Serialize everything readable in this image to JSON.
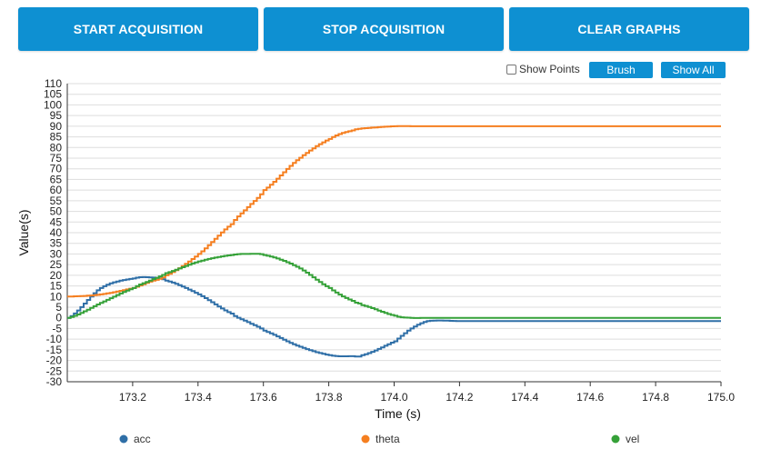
{
  "toolbar": {
    "start_label": "START ACQUISITION",
    "stop_label": "STOP ACQUISITION",
    "clear_label": "CLEAR GRAPHS"
  },
  "controls": {
    "show_points_label": "Show Points",
    "show_points_checked": false,
    "brush_label": "Brush",
    "show_all_label": "Show All"
  },
  "colors": {
    "button": "#0e90d2",
    "acc": "#2f6fa7",
    "theta": "#f57f20",
    "vel": "#35a138",
    "grid": "#dddddd"
  },
  "chart_data": {
    "type": "line",
    "xlabel": "Time (s)",
    "ylabel": "Value(s)",
    "xlim": [
      173.0,
      175.0
    ],
    "ylim": [
      -30,
      110
    ],
    "x_ticks": [
      "173.2",
      "173.4",
      "173.6",
      "173.8",
      "174.0",
      "174.2",
      "174.4",
      "174.6",
      "174.8",
      "175.0"
    ],
    "y_ticks": [
      "-30",
      "-25",
      "-20",
      "-15",
      "-10",
      "-5",
      "0",
      "5",
      "10",
      "15",
      "20",
      "25",
      "30",
      "35",
      "40",
      "45",
      "50",
      "55",
      "60",
      "65",
      "70",
      "75",
      "80",
      "85",
      "90",
      "95",
      "100",
      "105",
      "110"
    ],
    "grid": true,
    "legend_position": "bottom",
    "x": [
      173.0,
      173.1,
      173.2,
      173.25,
      173.3,
      173.4,
      173.5,
      173.55,
      173.6,
      173.7,
      173.8,
      173.87,
      173.9,
      174.0,
      174.05,
      174.1,
      174.2,
      174.4,
      174.6,
      174.8,
      175.0
    ],
    "series": [
      {
        "name": "acc",
        "color": "#2f6fa7",
        "values": [
          0,
          14,
          18.5,
          19,
          17.5,
          11,
          2,
          -2,
          -6,
          -13,
          -17.5,
          -18,
          -17.5,
          -11,
          -5,
          -1.5,
          -1.5,
          -1.5,
          -1.5,
          -1.5,
          -1.5
        ]
      },
      {
        "name": "theta",
        "color": "#f57f20",
        "values": [
          10,
          11,
          14,
          17,
          20,
          30,
          44,
          52,
          60,
          74,
          84,
          88,
          89,
          90,
          90,
          90,
          90,
          90,
          90,
          90,
          90
        ]
      },
      {
        "name": "vel",
        "color": "#35a138",
        "values": [
          0,
          7,
          14,
          17.5,
          21,
          26.5,
          29.5,
          30,
          29.5,
          24,
          14,
          8,
          6,
          1,
          0,
          0,
          0,
          0,
          0,
          0,
          0
        ]
      }
    ]
  }
}
